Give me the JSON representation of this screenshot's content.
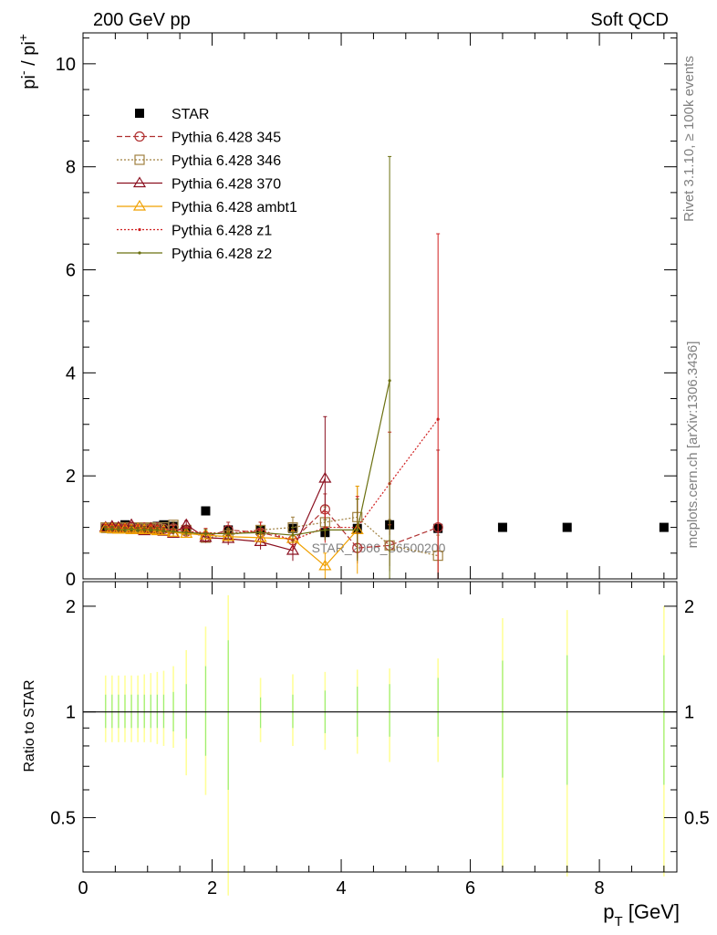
{
  "header": {
    "left": "200 GeV pp",
    "right": "Soft QCD"
  },
  "side": {
    "top": "Rivet 3.1.10, ≥ 100k events",
    "bottom": "mcplots.cern.ch [arXiv:1306.3436]"
  },
  "watermark": "STAR_2006_S6500200",
  "axes": {
    "ylabel_base": "pi",
    "ylabel_sup1": "-",
    "ylabel_mid": " / pi",
    "ylabel_sup2": "+",
    "xlabel_base": "p",
    "xlabel_sub": "T",
    "xlabel_unit": " [GeV]",
    "ratio_ylabel": "Ratio to STAR"
  },
  "chart_data": [
    {
      "type": "scatter",
      "panel": "main",
      "xlim": [
        0,
        9.2
      ],
      "ylim": [
        0,
        10.6
      ],
      "xticks": [
        0,
        2,
        4,
        6,
        8
      ],
      "yticks": [
        0,
        2,
        4,
        6,
        8,
        10
      ],
      "legend_position": "top-left",
      "series": [
        {
          "name": "STAR",
          "color": "#000000",
          "marker": "square",
          "x": [
            0.35,
            0.45,
            0.55,
            0.65,
            0.75,
            0.85,
            0.95,
            1.05,
            1.15,
            1.25,
            1.4,
            1.6,
            1.9,
            2.25,
            2.75,
            3.25,
            3.75,
            4.25,
            4.75,
            5.5,
            6.5,
            7.5,
            9.0
          ],
          "y": [
            0.98,
            1.0,
            1.0,
            1.05,
            0.97,
            0.99,
            1.0,
            1.0,
            1.02,
            1.05,
            1.02,
            0.95,
            1.32,
            0.95,
            0.95,
            0.98,
            0.9,
            0.98,
            1.05,
            0.98,
            1.0,
            1.0,
            1.0
          ]
        },
        {
          "name": "Pythia 6.428 345",
          "color": "#b03030",
          "marker": "circle",
          "dash": "6,3",
          "x": [
            0.35,
            0.45,
            0.55,
            0.65,
            0.75,
            0.85,
            0.95,
            1.05,
            1.15,
            1.25,
            1.4,
            1.6,
            1.9,
            2.25,
            2.75,
            3.25,
            3.75,
            4.25,
            4.75,
            5.5
          ],
          "y": [
            1.0,
            1.0,
            0.98,
            1.0,
            1.0,
            0.97,
            1.0,
            0.98,
            1.0,
            0.97,
            0.98,
            0.92,
            0.82,
            0.95,
            0.9,
            0.75,
            1.35,
            0.6,
            0.65,
            1.0
          ],
          "err": [
            0.05,
            0.05,
            0.05,
            0.05,
            0.05,
            0.05,
            0.05,
            0.05,
            0.05,
            0.05,
            0.06,
            0.07,
            0.08,
            0.15,
            0.2,
            0.25,
            0.3,
            0.3,
            0.4,
            1.5
          ]
        },
        {
          "name": "Pythia 6.428 346",
          "color": "#a08040",
          "marker": "square-open",
          "dash": "2,2",
          "x": [
            0.35,
            0.45,
            0.55,
            0.65,
            0.75,
            0.85,
            0.95,
            1.05,
            1.15,
            1.25,
            1.4,
            1.6,
            1.9,
            2.25,
            2.75,
            3.25,
            3.75,
            4.25,
            4.75,
            5.5
          ],
          "y": [
            1.0,
            0.98,
            1.0,
            1.0,
            0.97,
            1.0,
            0.98,
            1.0,
            0.98,
            1.0,
            1.05,
            0.95,
            0.8,
            0.85,
            0.95,
            1.0,
            1.1,
            1.2,
            0.65,
            0.45
          ],
          "err": [
            0.05,
            0.05,
            0.05,
            0.05,
            0.05,
            0.05,
            0.05,
            0.05,
            0.05,
            0.05,
            0.06,
            0.07,
            0.08,
            0.12,
            0.15,
            0.2,
            0.3,
            0.6,
            0.5,
            0.4
          ]
        },
        {
          "name": "Pythia 6.428 370",
          "color": "#8b1020",
          "marker": "triangle",
          "dash": "",
          "x": [
            0.35,
            0.45,
            0.55,
            0.65,
            0.75,
            0.85,
            0.95,
            1.05,
            1.15,
            1.25,
            1.4,
            1.6,
            1.9,
            2.25,
            2.75,
            3.25,
            3.75
          ],
          "y": [
            1.0,
            1.02,
            1.0,
            0.98,
            1.05,
            0.97,
            0.93,
            0.98,
            0.95,
            0.92,
            0.88,
            1.05,
            0.8,
            0.78,
            0.72,
            0.55,
            1.95
          ],
          "err": [
            0.05,
            0.05,
            0.05,
            0.05,
            0.05,
            0.05,
            0.05,
            0.05,
            0.05,
            0.05,
            0.06,
            0.08,
            0.1,
            0.12,
            0.15,
            0.2,
            1.2
          ]
        },
        {
          "name": "Pythia 6.428 ambt1",
          "color": "#f0a000",
          "marker": "triangle",
          "dash": "",
          "x": [
            0.35,
            0.45,
            0.55,
            0.65,
            0.75,
            0.85,
            0.95,
            1.05,
            1.15,
            1.25,
            1.4,
            1.6,
            1.9,
            2.25,
            2.75,
            3.25,
            3.75,
            4.25
          ],
          "y": [
            0.98,
            0.97,
            0.96,
            0.97,
            0.95,
            0.97,
            0.95,
            0.95,
            0.93,
            0.93,
            0.9,
            0.88,
            0.85,
            0.82,
            0.8,
            0.78,
            0.25,
            0.95
          ],
          "err": [
            0.05,
            0.05,
            0.05,
            0.05,
            0.05,
            0.05,
            0.05,
            0.05,
            0.05,
            0.05,
            0.06,
            0.07,
            0.08,
            0.1,
            0.12,
            0.15,
            0.25,
            0.85
          ]
        },
        {
          "name": "Pythia 6.428 z1",
          "color": "#d02020",
          "marker": "dot",
          "dash": "2,2",
          "x": [
            0.35,
            0.45,
            0.55,
            0.65,
            0.75,
            0.85,
            0.95,
            1.05,
            1.15,
            1.25,
            1.4,
            1.6,
            1.9,
            2.25,
            2.75,
            3.25,
            3.75,
            4.25,
            4.75,
            5.5
          ],
          "y": [
            1.0,
            1.0,
            0.98,
            1.0,
            0.98,
            1.0,
            0.97,
            1.0,
            0.98,
            0.95,
            0.97,
            0.92,
            0.9,
            0.88,
            0.95,
            0.75,
            1.0,
            1.0,
            1.85,
            3.1
          ],
          "err": [
            0.05,
            0.05,
            0.05,
            0.05,
            0.05,
            0.05,
            0.05,
            0.05,
            0.05,
            0.05,
            0.06,
            0.07,
            0.08,
            0.1,
            0.15,
            0.2,
            0.3,
            0.6,
            1.0,
            3.6
          ]
        },
        {
          "name": "Pythia 6.428 z2",
          "color": "#6b7010",
          "marker": "dot",
          "dash": "",
          "x": [
            0.35,
            0.45,
            0.55,
            0.65,
            0.75,
            0.85,
            0.95,
            1.05,
            1.15,
            1.25,
            1.4,
            1.6,
            1.9,
            2.25,
            2.75,
            3.25,
            3.75,
            4.25,
            4.75
          ],
          "y": [
            0.97,
            0.97,
            0.96,
            0.95,
            0.97,
            0.95,
            0.96,
            0.95,
            0.95,
            0.93,
            0.92,
            0.9,
            0.88,
            0.88,
            0.9,
            0.85,
            0.95,
            0.95,
            3.85
          ],
          "err": [
            0.05,
            0.05,
            0.05,
            0.05,
            0.05,
            0.05,
            0.05,
            0.05,
            0.05,
            0.05,
            0.06,
            0.07,
            0.08,
            0.1,
            0.12,
            0.15,
            0.2,
            0.6,
            4.35
          ]
        }
      ]
    },
    {
      "type": "scatter",
      "panel": "ratio",
      "ylabel": "Ratio to STAR",
      "xlim": [
        0,
        9.2
      ],
      "ylim": [
        0.35,
        2.35
      ],
      "log_y": true,
      "yticks": [
        0.5,
        1,
        2
      ],
      "reference_line": 1,
      "band_color": "#ffff99",
      "band_inner_color": "#99ee77",
      "x": [
        0.35,
        0.45,
        0.55,
        0.65,
        0.75,
        0.85,
        0.95,
        1.05,
        1.15,
        1.25,
        1.4,
        1.6,
        1.9,
        2.25,
        2.75,
        3.25,
        3.75,
        4.25,
        4.75,
        5.5,
        6.5,
        7.5,
        9.0
      ],
      "band_low": [
        0.82,
        0.82,
        0.82,
        0.82,
        0.82,
        0.82,
        0.82,
        0.82,
        0.81,
        0.8,
        0.79,
        0.66,
        0.58,
        0.3,
        0.82,
        0.8,
        0.78,
        0.76,
        0.72,
        0.72,
        0.36,
        0.34,
        0.34
      ],
      "band_high": [
        1.27,
        1.27,
        1.27,
        1.27,
        1.27,
        1.27,
        1.28,
        1.29,
        1.3,
        1.31,
        1.35,
        1.5,
        1.75,
        2.15,
        1.25,
        1.28,
        1.3,
        1.32,
        1.33,
        1.42,
        1.85,
        1.95,
        2.0
      ],
      "inner_low": [
        0.9,
        0.9,
        0.9,
        0.9,
        0.9,
        0.9,
        0.9,
        0.9,
        0.9,
        0.9,
        0.88,
        0.84,
        0.75,
        0.6,
        0.9,
        0.9,
        0.87,
        0.85,
        0.85,
        0.85,
        0.65,
        0.62,
        0.62
      ],
      "inner_high": [
        1.12,
        1.12,
        1.12,
        1.12,
        1.12,
        1.12,
        1.12,
        1.12,
        1.12,
        1.12,
        1.14,
        1.2,
        1.35,
        1.6,
        1.1,
        1.12,
        1.15,
        1.18,
        1.2,
        1.25,
        1.4,
        1.45,
        1.45
      ]
    }
  ]
}
